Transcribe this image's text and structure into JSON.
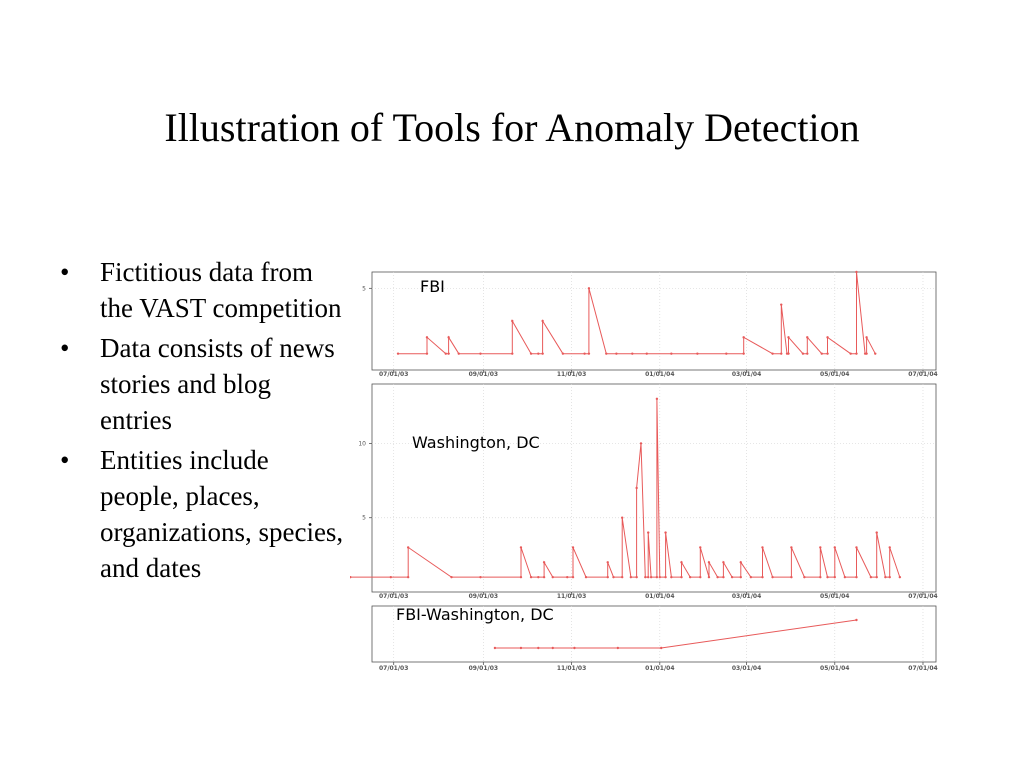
{
  "slide": {
    "title": "Illustration of Tools for Anomaly Detection",
    "bullets": [
      "Fictitious data from the VAST competition",
      "Data consists of news stories and blog entries",
      "Entities include people, places, organizations, species, and dates"
    ]
  },
  "colors": {
    "line": "#e85a5a",
    "axis": "#555555",
    "grid": "#d8d8d8",
    "text": "#000000"
  },
  "chart_data": [
    {
      "type": "line",
      "annotation": "FBI",
      "x_tick_labels": [
        "07/01/03",
        "09/01/03",
        "11/01/03",
        "01/01/04",
        "03/01/04",
        "05/01/04",
        "07/01/04"
      ],
      "y_ticks": [
        5
      ],
      "ylim": [
        0,
        6
      ],
      "x_range_days": [
        -15,
        375
      ],
      "grid": true,
      "series": [
        {
          "points": [
            [
              3,
              1
            ],
            [
              23,
              1
            ],
            [
              23,
              2
            ],
            [
              36,
              1
            ],
            [
              38,
              1
            ],
            [
              38,
              2
            ],
            [
              45,
              1
            ],
            [
              60,
              1
            ],
            [
              82,
              1
            ],
            [
              82,
              3
            ],
            [
              95,
              1
            ],
            [
              100,
              1
            ],
            [
              103,
              1
            ],
            [
              103,
              3
            ],
            [
              117,
              1
            ],
            [
              132,
              1
            ],
            [
              135,
              1
            ],
            [
              135,
              5
            ],
            [
              147,
              1
            ],
            [
              154,
              1
            ],
            [
              165,
              1
            ],
            [
              175,
              1
            ],
            [
              192,
              1
            ],
            [
              210,
              1
            ],
            [
              230,
              1
            ],
            [
              242,
              1
            ],
            [
              242,
              2
            ],
            [
              262,
              1
            ],
            [
              268,
              1
            ],
            [
              268,
              4
            ],
            [
              272,
              1
            ],
            [
              273,
              1
            ],
            [
              273,
              2
            ],
            [
              283,
              1
            ],
            [
              286,
              1
            ],
            [
              286,
              2
            ],
            [
              296,
              1
            ],
            [
              300,
              1
            ],
            [
              300,
              2
            ],
            [
              316,
              1
            ],
            [
              320,
              1
            ],
            [
              320,
              6
            ],
            [
              326,
              1
            ],
            [
              327,
              1
            ],
            [
              327,
              2
            ],
            [
              333,
              1
            ]
          ]
        }
      ]
    },
    {
      "type": "line",
      "annotation": "Washington, DC",
      "x_tick_labels": [
        "07/01/03",
        "09/01/03",
        "11/01/03",
        "01/01/04",
        "03/01/04",
        "05/01/04",
        "07/01/04"
      ],
      "y_ticks": [
        5,
        10
      ],
      "ylim": [
        0,
        14
      ],
      "x_range_days": [
        -15,
        375
      ],
      "grid": true,
      "series": [
        {
          "points": [
            [
              -30,
              1
            ],
            [
              -2,
              1
            ],
            [
              10,
              1
            ],
            [
              10,
              3
            ],
            [
              40,
              1
            ],
            [
              60,
              1
            ],
            [
              88,
              1
            ],
            [
              88,
              3
            ],
            [
              95,
              1
            ],
            [
              100,
              1
            ],
            [
              104,
              1
            ],
            [
              104,
              2
            ],
            [
              110,
              1
            ],
            [
              120,
              1
            ],
            [
              124,
              1
            ],
            [
              124,
              3
            ],
            [
              133,
              1
            ],
            [
              148,
              1
            ],
            [
              148,
              2
            ],
            [
              152,
              1
            ],
            [
              158,
              1
            ],
            [
              158,
              5
            ],
            [
              164,
              1
            ],
            [
              168,
              1
            ],
            [
              168,
              7
            ],
            [
              171,
              10
            ],
            [
              174,
              1
            ],
            [
              176,
              1
            ],
            [
              176,
              4
            ],
            [
              178,
              1
            ],
            [
              182,
              1
            ],
            [
              182,
              13
            ],
            [
              184,
              1
            ],
            [
              188,
              1
            ],
            [
              188,
              4
            ],
            [
              192,
              1
            ],
            [
              199,
              1
            ],
            [
              199,
              2
            ],
            [
              205,
              1
            ],
            [
              212,
              1
            ],
            [
              212,
              3
            ],
            [
              218,
              1
            ],
            [
              218,
              2
            ],
            [
              224,
              1
            ],
            [
              228,
              1
            ],
            [
              228,
              2
            ],
            [
              234,
              1
            ],
            [
              240,
              1
            ],
            [
              240,
              2
            ],
            [
              247,
              1
            ],
            [
              255,
              1
            ],
            [
              255,
              3
            ],
            [
              262,
              1
            ],
            [
              275,
              1
            ],
            [
              275,
              3
            ],
            [
              284,
              1
            ],
            [
              295,
              1
            ],
            [
              295,
              3
            ],
            [
              300,
              1
            ],
            [
              305,
              1
            ],
            [
              305,
              3
            ],
            [
              312,
              1
            ],
            [
              320,
              1
            ],
            [
              320,
              3
            ],
            [
              330,
              1
            ],
            [
              334,
              1
            ],
            [
              334,
              4
            ],
            [
              340,
              1
            ],
            [
              343,
              1
            ],
            [
              343,
              3
            ],
            [
              350,
              1
            ]
          ]
        }
      ]
    },
    {
      "type": "line",
      "annotation": "FBI-Washington, DC",
      "x_tick_labels": [
        "07/01/03",
        "09/01/03",
        "11/01/03",
        "01/01/04",
        "03/01/04",
        "05/01/04",
        "07/01/04"
      ],
      "y_ticks": [],
      "ylim": [
        0,
        4
      ],
      "x_range_days": [
        -15,
        375
      ],
      "grid": true,
      "series": [
        {
          "points": [
            [
              70,
              1
            ],
            [
              88,
              1
            ],
            [
              100,
              1
            ],
            [
              110,
              1
            ],
            [
              125,
              1
            ],
            [
              155,
              1
            ],
            [
              185,
              1
            ],
            [
              320,
              3
            ]
          ]
        }
      ]
    }
  ]
}
